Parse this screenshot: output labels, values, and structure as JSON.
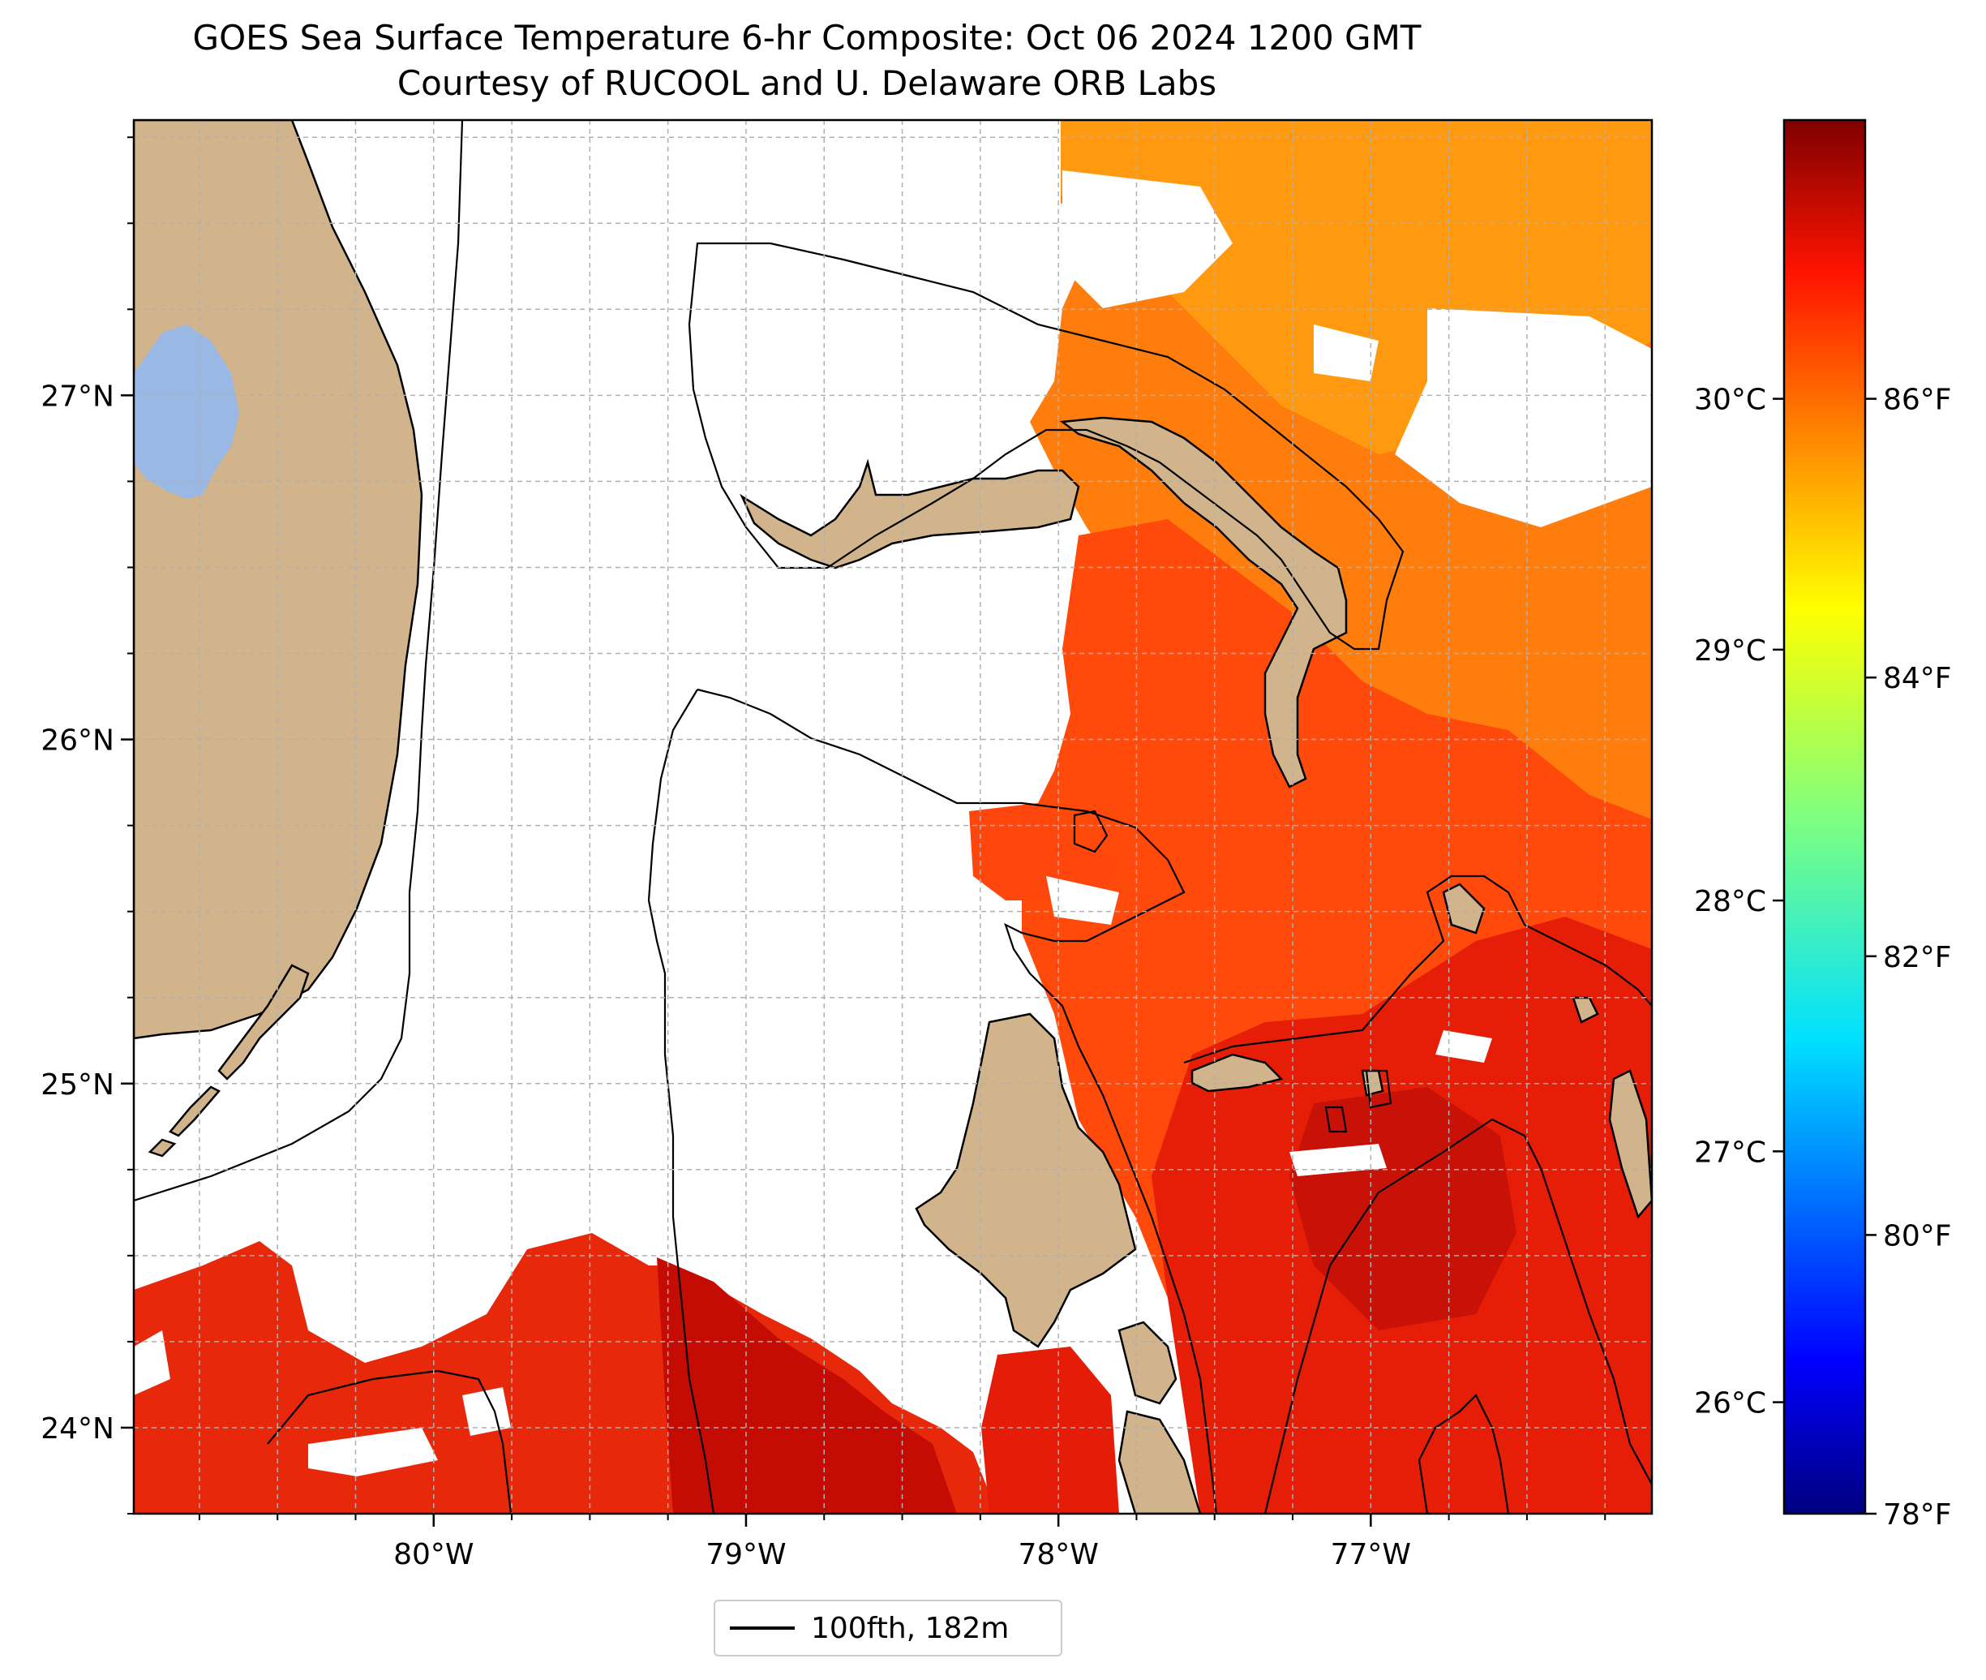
{
  "title": {
    "line1": "GOES Sea Surface Temperature 6-hr Composite: Oct 06 2024 1200 GMT",
    "line2": "Courtesy of RUCOOL and U. Delaware ORB Labs"
  },
  "map": {
    "lon_range": [
      -80.96,
      -76.1
    ],
    "lat_range": [
      23.75,
      27.8
    ],
    "lon_ticks": [
      {
        "value": -80,
        "label": "80°W"
      },
      {
        "value": -79,
        "label": "79°W"
      },
      {
        "value": -78,
        "label": "78°W"
      },
      {
        "value": -77,
        "label": "77°W"
      }
    ],
    "lat_ticks": [
      {
        "value": 24,
        "label": "24°N"
      },
      {
        "value": 25,
        "label": "25°N"
      },
      {
        "value": 26,
        "label": "26°N"
      },
      {
        "value": 27,
        "label": "27°N"
      }
    ],
    "colors": {
      "land": "#d2b48c",
      "lake": "#9ab8e4",
      "water_no_data": "#ffffff",
      "sst_north": "#ff7a0a",
      "sst_mid": "#ff4a0a",
      "sst_south": "#e61e08",
      "sst_warm": "#c80a00"
    }
  },
  "legend": {
    "label": "100fth, 182m"
  },
  "colorbar": {
    "celsius_ticks": [
      {
        "value": 26,
        "label": "26°C"
      },
      {
        "value": 27,
        "label": "27°C"
      },
      {
        "value": 28,
        "label": "28°C"
      },
      {
        "value": 29,
        "label": "29°C"
      },
      {
        "value": 30,
        "label": "30°C"
      }
    ],
    "fahrenheit_ticks": [
      {
        "value": 78,
        "label": "78°F"
      },
      {
        "value": 80,
        "label": "80°F"
      },
      {
        "value": 82,
        "label": "82°F"
      },
      {
        "value": 84,
        "label": "84°F"
      },
      {
        "value": 86,
        "label": "86°F"
      }
    ],
    "range_f": [
      78,
      88
    ],
    "colormap": "jet"
  }
}
